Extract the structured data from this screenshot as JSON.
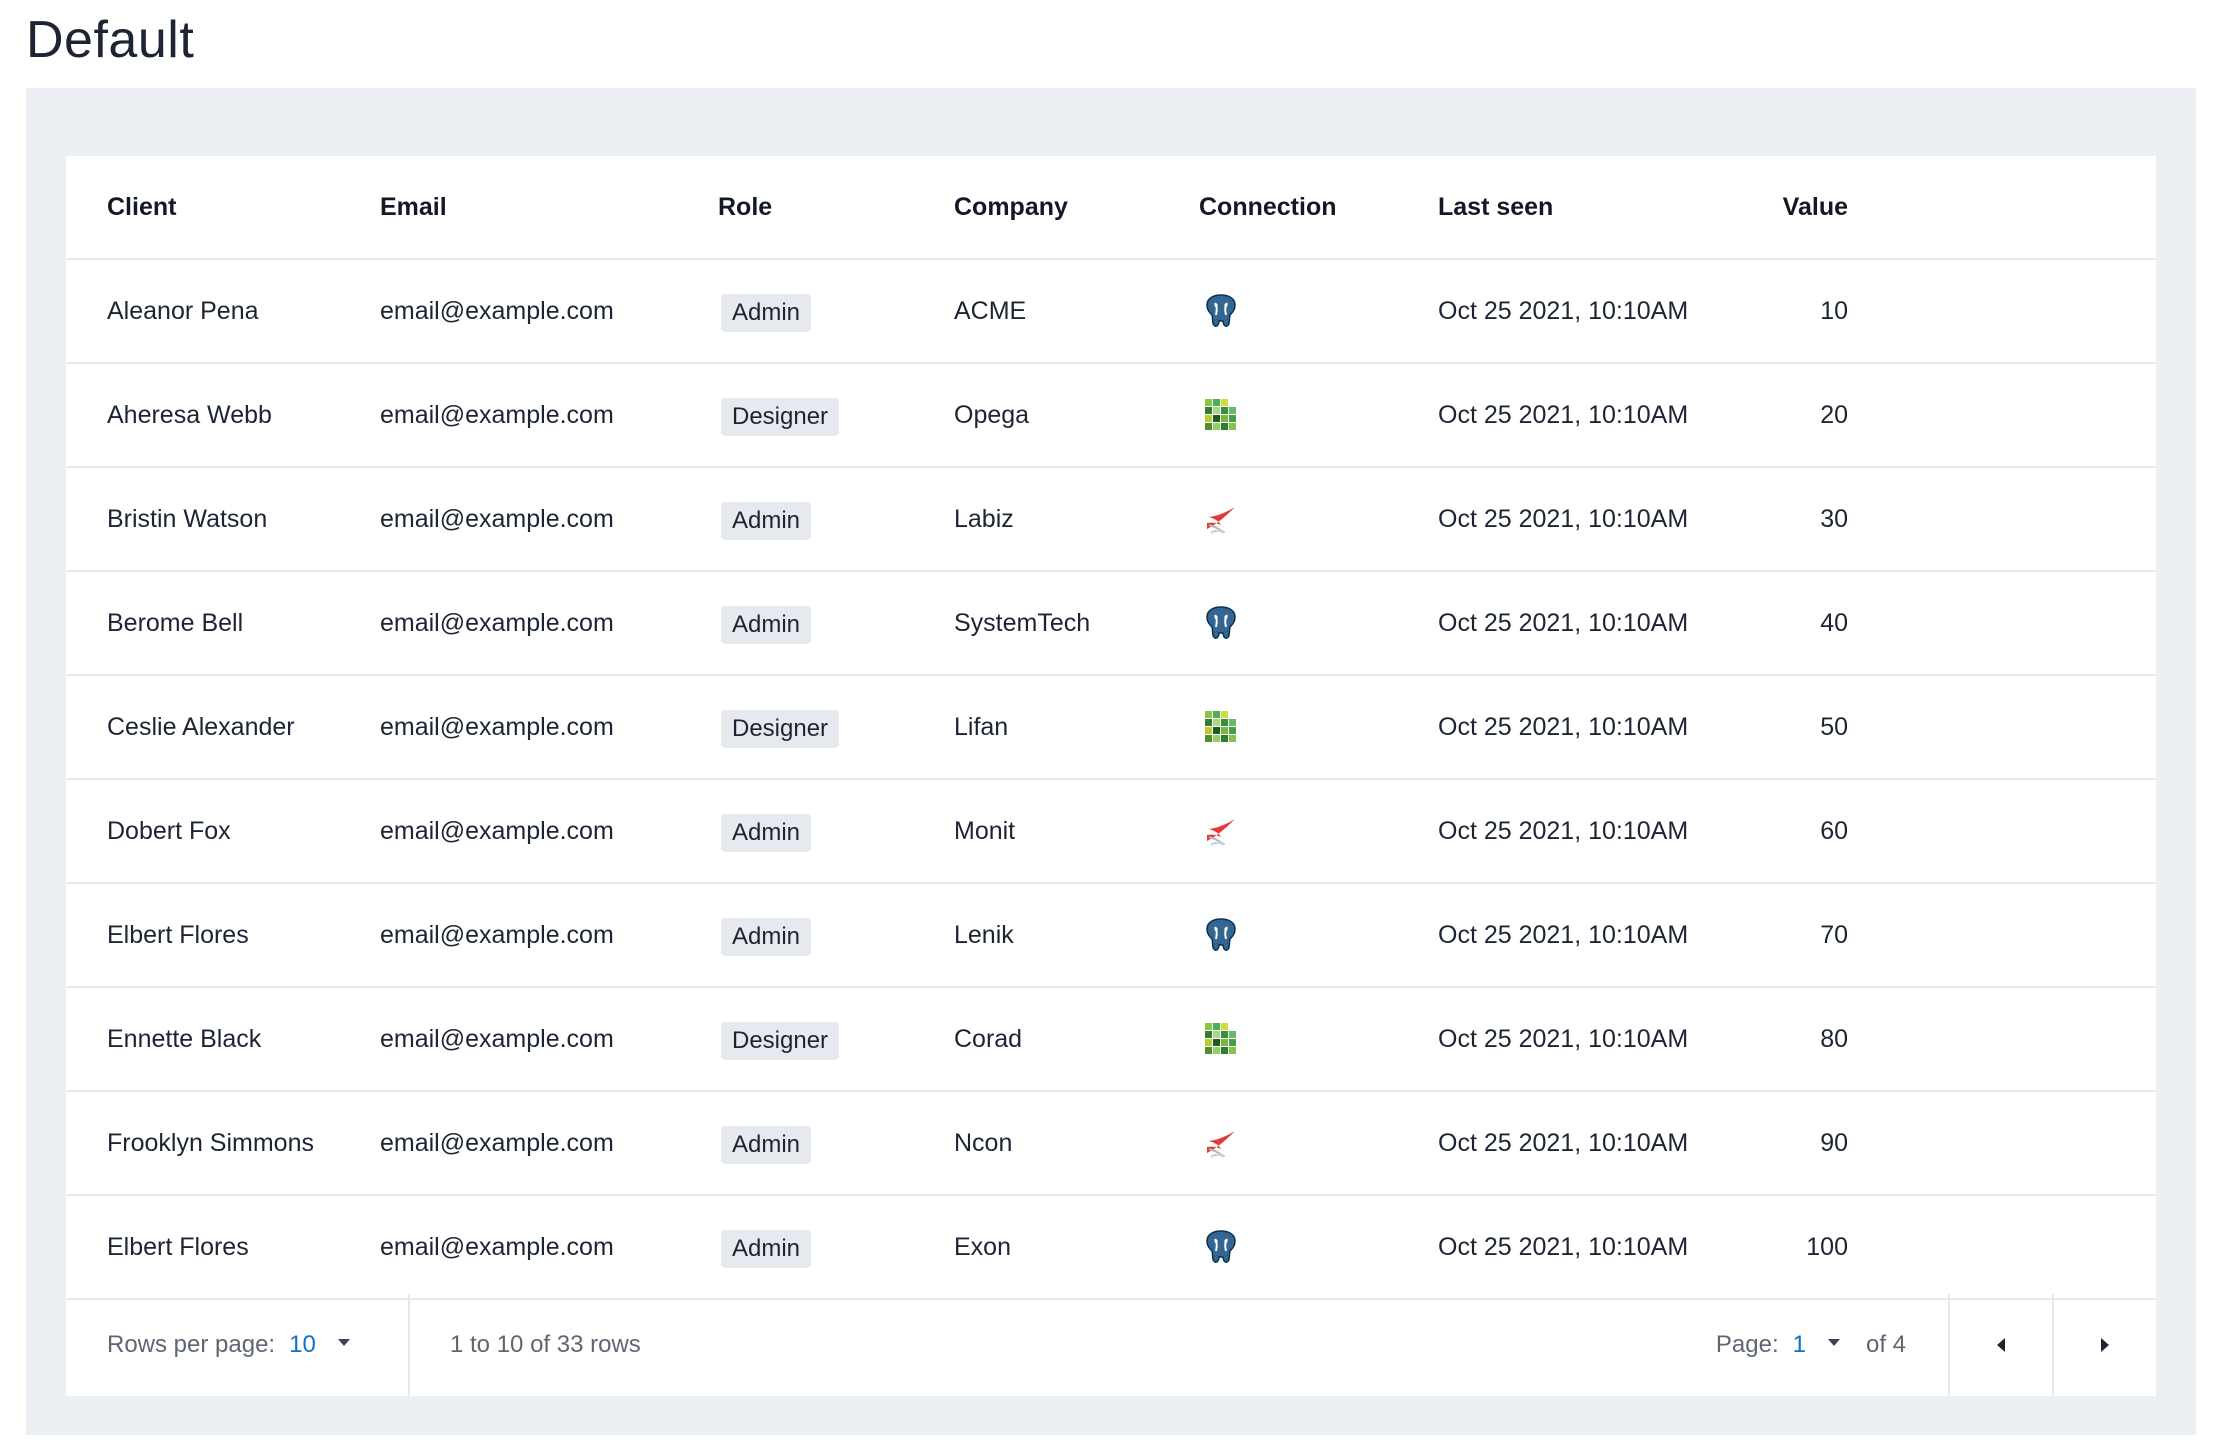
{
  "page": {
    "title": "Default"
  },
  "table": {
    "columns": [
      "Client",
      "Email",
      "Role",
      "Company",
      "Connection",
      "Last seen",
      "Value"
    ],
    "rows": [
      {
        "client": "Aleanor Pena",
        "email": "email@example.com",
        "role": "Admin",
        "company": "ACME",
        "connection": "postgresql-icon",
        "last_seen": "Oct 25  2021, 10:10AM",
        "value": "10"
      },
      {
        "client": "Aheresa Webb",
        "email": "email@example.com",
        "role": "Designer",
        "company": "Opega",
        "connection": "green-grid-icon",
        "last_seen": "Oct 25  2021, 10:10AM",
        "value": "20"
      },
      {
        "client": "Bristin Watson",
        "email": "email@example.com",
        "role": "Admin",
        "company": "Labiz",
        "connection": "sql-server-icon",
        "last_seen": "Oct 25  2021, 10:10AM",
        "value": "30"
      },
      {
        "client": "Berome Bell",
        "email": "email@example.com",
        "role": "Admin",
        "company": "SystemTech",
        "connection": "postgresql-icon",
        "last_seen": "Oct 25  2021, 10:10AM",
        "value": "40"
      },
      {
        "client": "Ceslie Alexander",
        "email": "email@example.com",
        "role": "Designer",
        "company": "Lifan",
        "connection": "green-grid-icon",
        "last_seen": "Oct 25  2021, 10:10AM",
        "value": "50"
      },
      {
        "client": "Dobert Fox",
        "email": "email@example.com",
        "role": "Admin",
        "company": "Monit",
        "connection": "sql-server-icon",
        "last_seen": "Oct 25  2021, 10:10AM",
        "value": "60"
      },
      {
        "client": "Elbert Flores",
        "email": "email@example.com",
        "role": "Admin",
        "company": "Lenik",
        "connection": "postgresql-icon",
        "last_seen": "Oct 25  2021, 10:10AM",
        "value": "70"
      },
      {
        "client": "Ennette Black",
        "email": "email@example.com",
        "role": "Designer",
        "company": "Corad",
        "connection": "green-grid-icon",
        "last_seen": "Oct 25  2021, 10:10AM",
        "value": "80"
      },
      {
        "client": "Frooklyn Simmons",
        "email": "email@example.com",
        "role": "Admin",
        "company": "Ncon",
        "connection": "sql-server-icon",
        "last_seen": "Oct 25  2021, 10:10AM",
        "value": "90"
      },
      {
        "client": "Elbert Flores",
        "email": "email@example.com",
        "role": "Admin",
        "company": "Exon",
        "connection": "postgresql-icon",
        "last_seen": "Oct 25  2021, 10:10AM",
        "value": "100"
      }
    ]
  },
  "footer": {
    "rows_per_page_label": "Rows per page:",
    "rows_per_page_value": "10",
    "range_text": "1 to 10 of 33 rows",
    "page_label": "Page:",
    "page_value": "1",
    "page_of": "of 4",
    "prev_icon": "chevron-left-icon",
    "next_icon": "chevron-right-icon"
  },
  "colors": {
    "panel_bg": "#ebeef2",
    "accent": "#1172c2",
    "badge_bg": "#e6e9ee"
  }
}
